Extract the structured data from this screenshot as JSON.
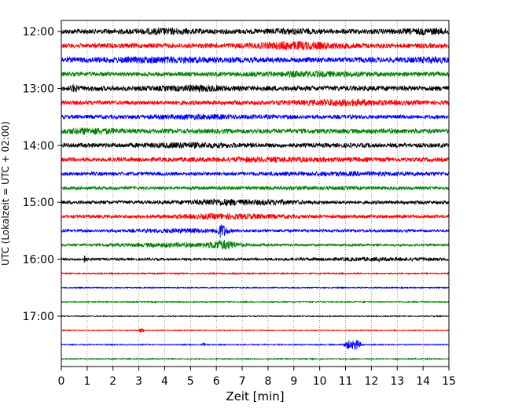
{
  "chart_data": {
    "type": "line",
    "title": "",
    "xlabel": "Zeit  [min]",
    "ylabel": "UTC (Lokalzeit = UTC + 02:00)",
    "xlim": [
      0,
      15
    ],
    "x_ticks": [
      "0",
      "1",
      "2",
      "3",
      "4",
      "5",
      "6",
      "7",
      "8",
      "9",
      "10",
      "11",
      "12",
      "13",
      "14",
      "15"
    ],
    "y_tick_labels": [
      "12:00",
      "13:00",
      "14:00",
      "15:00",
      "16:00",
      "17:00"
    ],
    "grid": "vertical-dotted",
    "colors": [
      "#000000",
      "#ff0000",
      "#0000ff",
      "#008000"
    ],
    "traces": [
      {
        "start": "12:00",
        "color": "#000000",
        "amp": 3.2,
        "bursts": [
          [
            4,
            0.8,
            1.5
          ],
          [
            8.8,
            0.6,
            1.2
          ],
          [
            14.2,
            0.8,
            1.5
          ]
        ]
      },
      {
        "start": "12:15",
        "color": "#ff0000",
        "amp": 3.0,
        "bursts": [
          [
            9,
            1.2,
            3
          ]
        ]
      },
      {
        "start": "12:30",
        "color": "#0000ff",
        "amp": 3.4,
        "bursts": [
          [
            3.7,
            1.5,
            1.4
          ],
          [
            14.3,
            0.6,
            1.3
          ]
        ]
      },
      {
        "start": "12:45",
        "color": "#008000",
        "amp": 2.8,
        "bursts": [
          [
            9.4,
            1.5,
            1.6
          ]
        ]
      },
      {
        "start": "13:00",
        "color": "#000000",
        "amp": 3.2,
        "bursts": [
          [
            5.2,
            0.8,
            1.7
          ],
          [
            0.5,
            0.1,
            2.5
          ]
        ]
      },
      {
        "start": "13:15",
        "color": "#ff0000",
        "amp": 2.8,
        "bursts": [
          [
            10.8,
            1.3,
            2.2
          ]
        ]
      },
      {
        "start": "13:30",
        "color": "#0000ff",
        "amp": 2.5,
        "bursts": [
          [
            5.2,
            1.6,
            1.3
          ]
        ]
      },
      {
        "start": "13:45",
        "color": "#008000",
        "amp": 3.0,
        "bursts": [
          [
            1.0,
            0.8,
            1.9
          ]
        ]
      },
      {
        "start": "14:00",
        "color": "#000000",
        "amp": 2.8,
        "bursts": [
          [
            4.8,
            1.2,
            1.5
          ]
        ]
      },
      {
        "start": "14:15",
        "color": "#ff0000",
        "amp": 2.6,
        "bursts": [
          [
            8,
            2.5,
            1.2
          ]
        ]
      },
      {
        "start": "14:30",
        "color": "#0000ff",
        "amp": 2.3,
        "bursts": [
          [
            11,
            2.5,
            0.9
          ]
        ]
      },
      {
        "start": "14:45",
        "color": "#008000",
        "amp": 2.0,
        "bursts": [
          [
            9.5,
            1.5,
            0.6
          ]
        ]
      },
      {
        "start": "15:00",
        "color": "#000000",
        "amp": 2.2,
        "bursts": [
          [
            6,
            0.9,
            2.6
          ],
          [
            8.2,
            0.8,
            1.5
          ]
        ]
      },
      {
        "start": "15:15",
        "color": "#ff0000",
        "amp": 2.1,
        "bursts": [
          [
            6.3,
            1.6,
            2.0
          ]
        ]
      },
      {
        "start": "15:30",
        "color": "#0000ff",
        "amp": 1.8,
        "bursts": [
          [
            4.6,
            1.2,
            1.5
          ],
          [
            6.2,
            0.15,
            7.0
          ]
        ]
      },
      {
        "start": "15:45",
        "color": "#008000",
        "amp": 1.6,
        "bursts": [
          [
            6.2,
            0.4,
            4.5
          ],
          [
            4.2,
            1.8,
            1.6
          ]
        ]
      },
      {
        "start": "16:00",
        "color": "#000000",
        "amp": 1.5,
        "bursts": [
          [
            12,
            2.2,
            1.2
          ],
          [
            0.9,
            0.05,
            4.0
          ]
        ]
      },
      {
        "start": "16:15",
        "color": "#ff0000",
        "amp": 0.8,
        "bursts": []
      },
      {
        "start": "16:30",
        "color": "#0000ff",
        "amp": 0.7,
        "bursts": []
      },
      {
        "start": "16:45",
        "color": "#008000",
        "amp": 0.7,
        "bursts": []
      },
      {
        "start": "17:00",
        "color": "#000000",
        "amp": 0.6,
        "bursts": []
      },
      {
        "start": "17:15",
        "color": "#ff0000",
        "amp": 0.6,
        "bursts": [
          [
            3.1,
            0.06,
            3.0
          ]
        ]
      },
      {
        "start": "17:30",
        "color": "#0000ff",
        "amp": 0.7,
        "bursts": [
          [
            11.1,
            0.12,
            5
          ],
          [
            11.4,
            0.12,
            6.5
          ],
          [
            5.5,
            0.04,
            2
          ]
        ]
      },
      {
        "start": "17:45",
        "color": "#008000",
        "amp": 0.8,
        "bursts": []
      }
    ]
  }
}
